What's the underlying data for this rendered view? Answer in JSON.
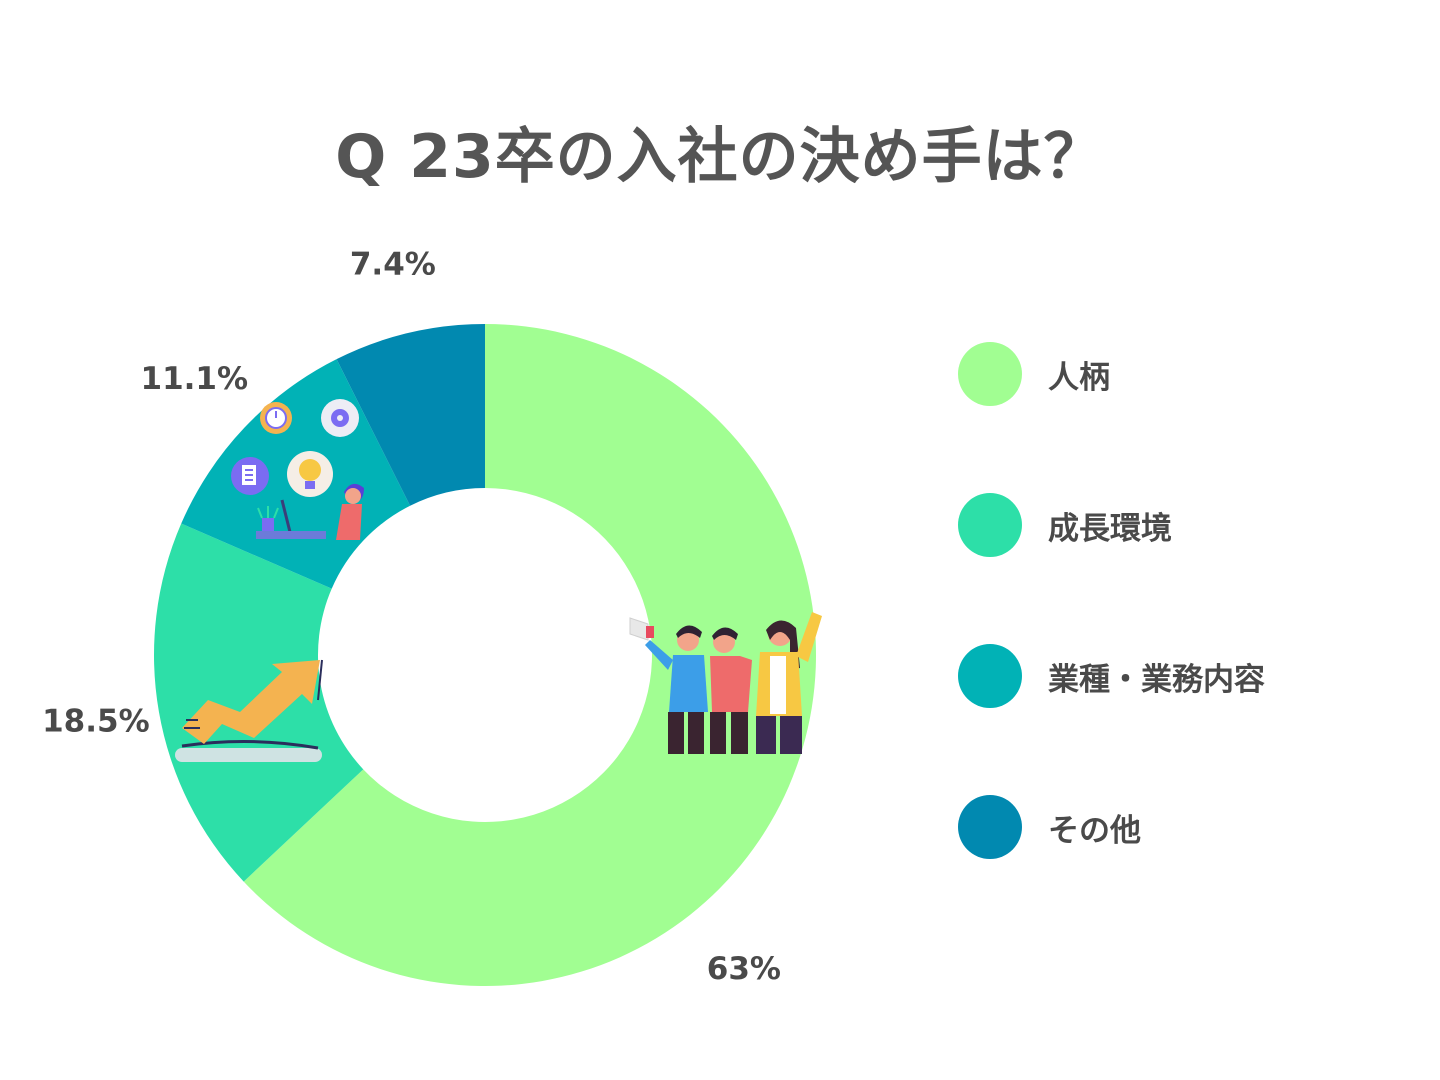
{
  "chart_data": {
    "type": "pie",
    "title": "Q 23卒の入社の決め手は？",
    "categories": [
      "人柄",
      "成長環境",
      "業種・業務内容",
      "その他"
    ],
    "values": [
      63,
      18.5,
      11.1,
      7.4
    ],
    "value_labels": [
      "63%",
      "18.5%",
      "11.1%",
      "7.4%"
    ],
    "colors": [
      "#a1fe92",
      "#2ddfa8",
      "#01b2b6",
      "#0189b0"
    ],
    "legend": {
      "position": "right"
    },
    "donut": true
  }
}
